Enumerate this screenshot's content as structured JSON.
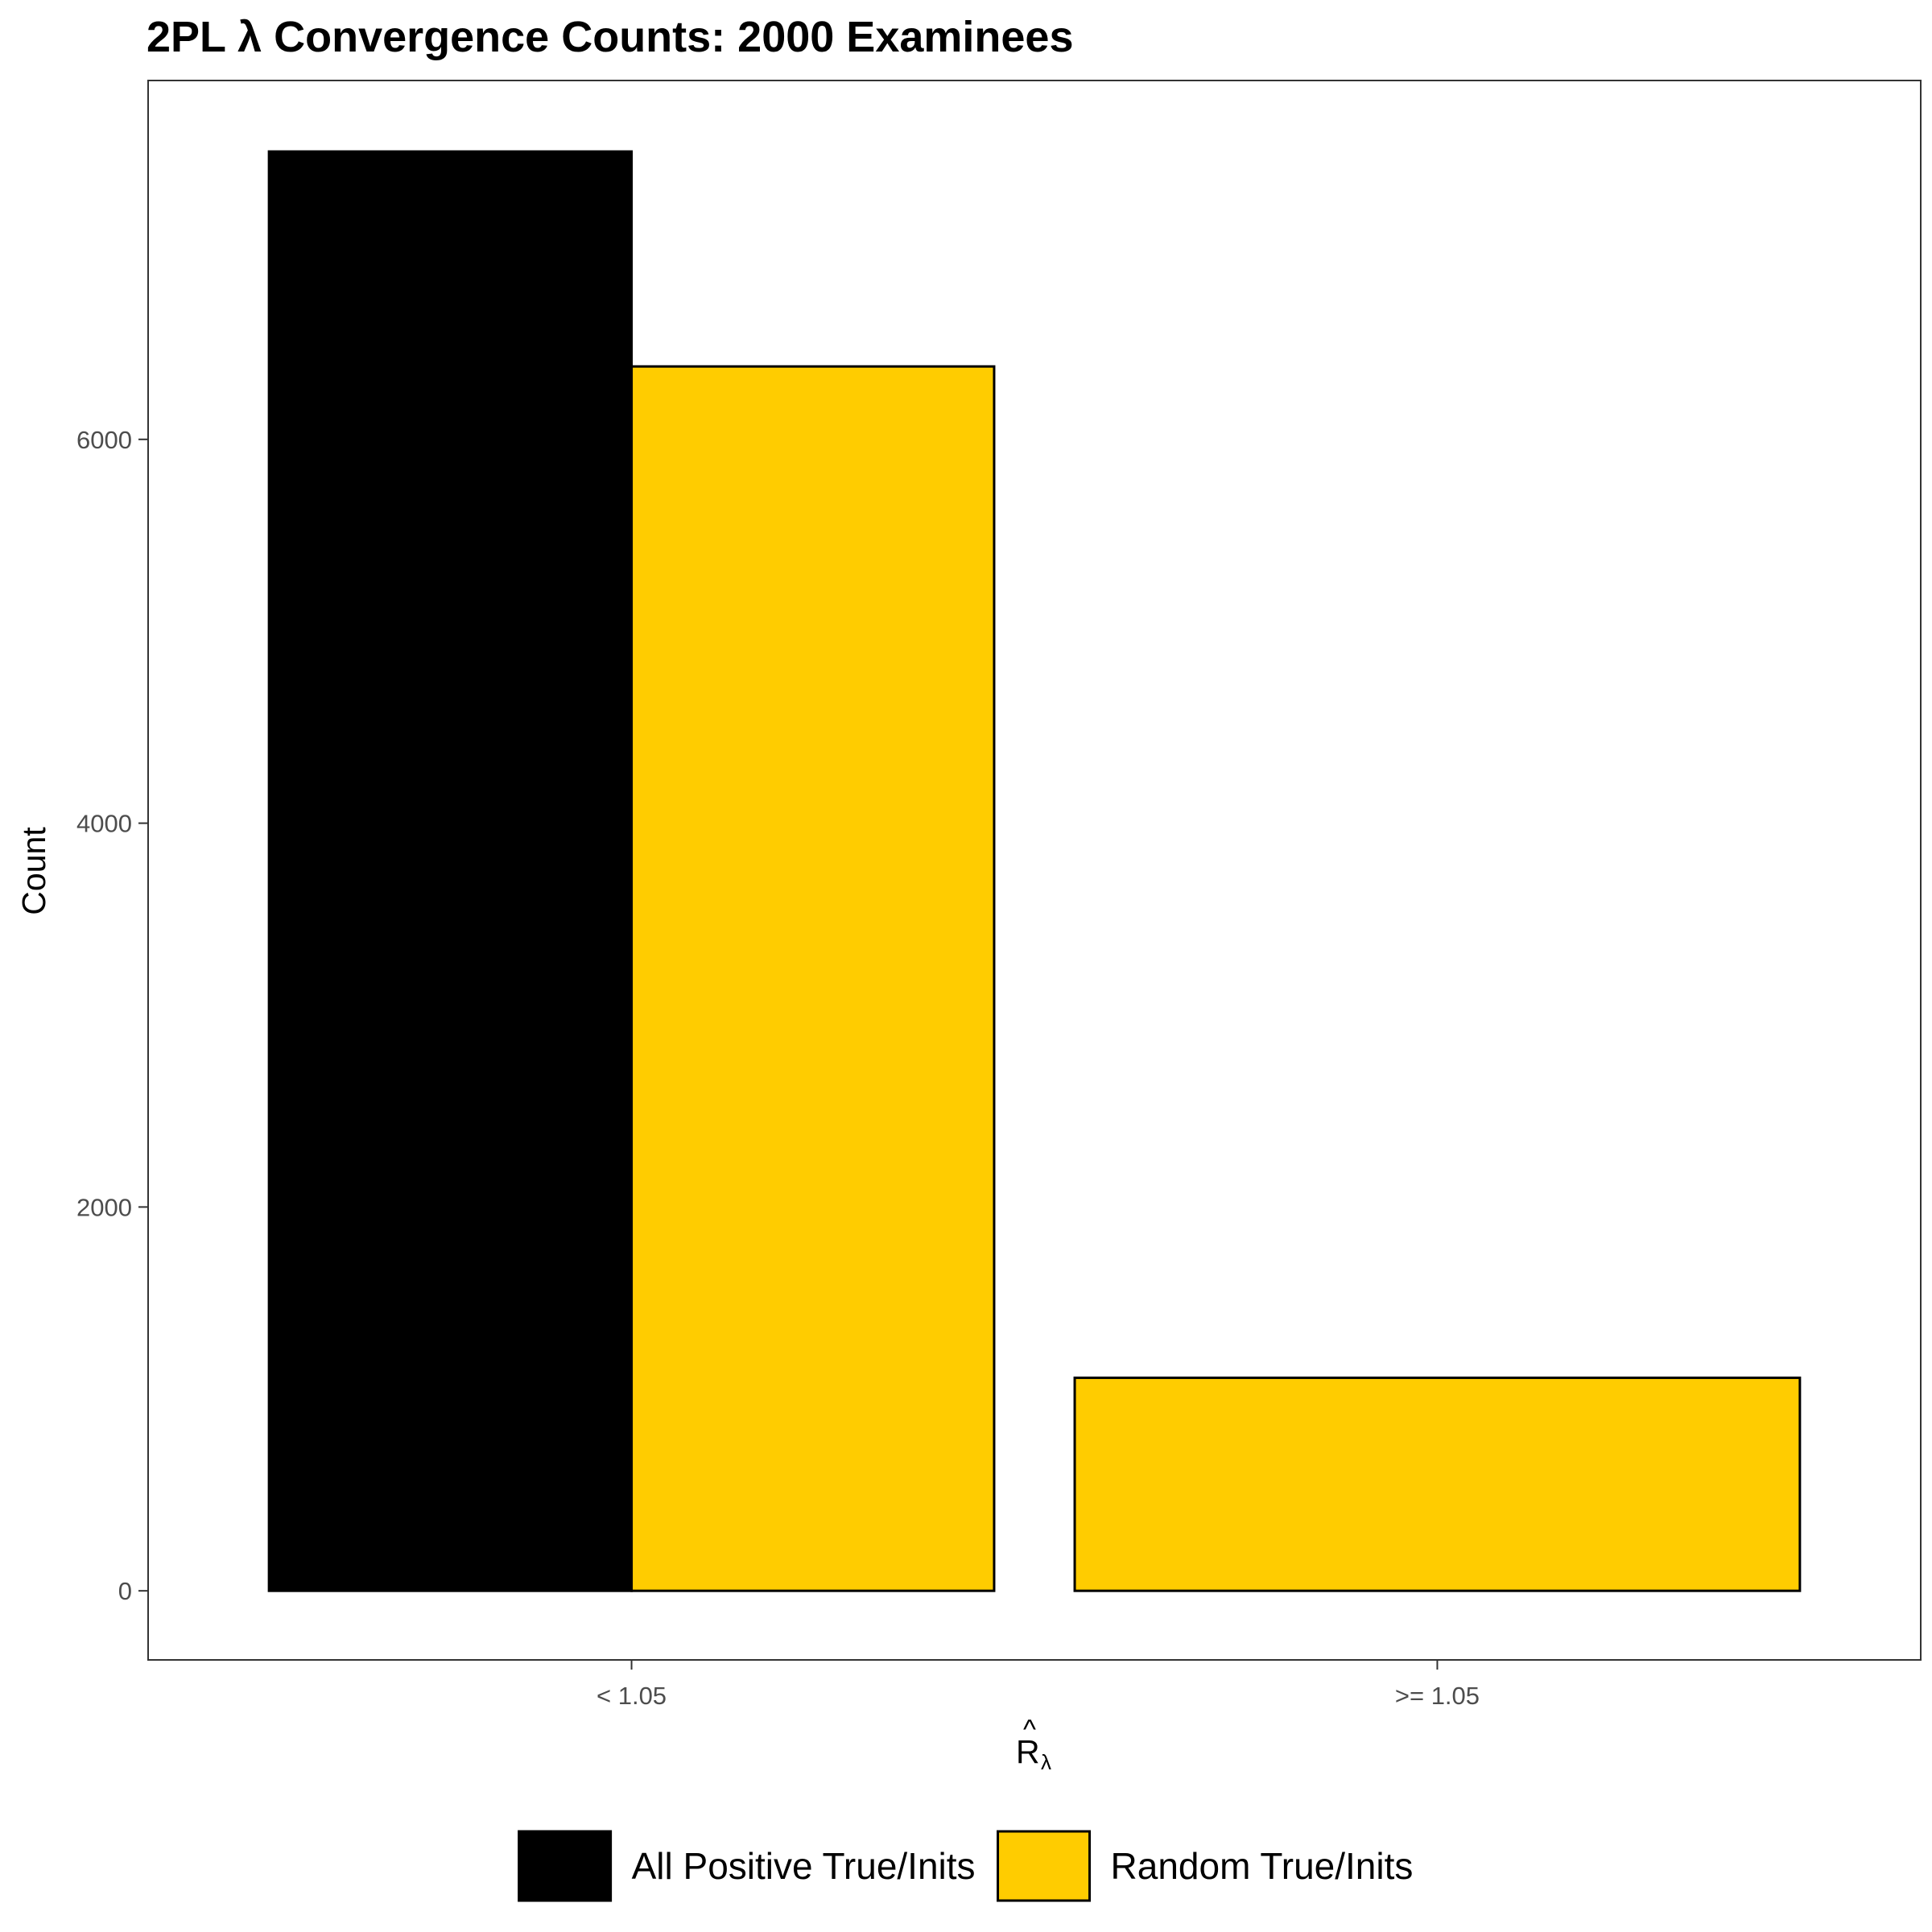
{
  "chart_data": {
    "type": "bar",
    "title": "2PL λ Convergence Counts: 2000 Examinees",
    "ylabel": "Count",
    "xlabel": "R̂λ",
    "xlabel_parts": {
      "main": "R",
      "hat": "^",
      "subscript": "λ"
    },
    "categories": [
      "< 1.05",
      ">= 1.05"
    ],
    "yticks": [
      0,
      2000,
      4000,
      6000
    ],
    "ylim": [
      -360,
      7870
    ],
    "grid": false,
    "legend_position": "bottom",
    "series": [
      {
        "name": "All Positive True/Inits",
        "color": "#000000",
        "values": [
          7500,
          null
        ]
      },
      {
        "name": "Random True/Inits",
        "color": "#FFCC00",
        "values": [
          6380,
          1110
        ]
      }
    ]
  }
}
